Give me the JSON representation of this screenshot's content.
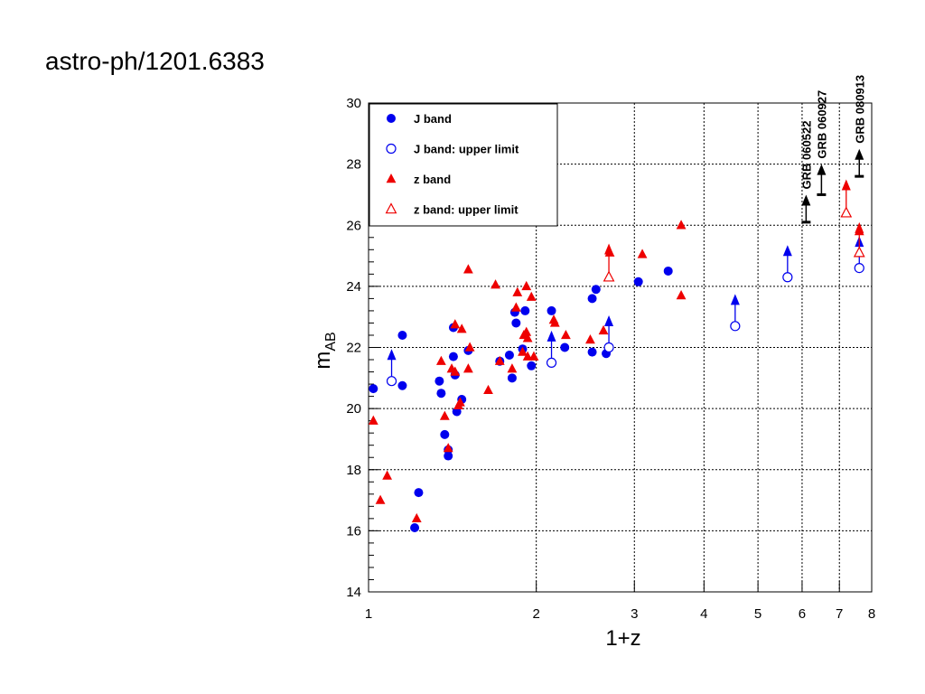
{
  "header": {
    "source_label": "astro-ph/1201.6383"
  },
  "chart_data": {
    "type": "scatter",
    "title": "",
    "xlabel": "1+z",
    "ylabel": "m",
    "ylabel_sub": "AB",
    "xscale": "log",
    "xlim": [
      1,
      8
    ],
    "ylim": [
      14,
      30
    ],
    "x_ticks": [
      1,
      2,
      3,
      4,
      5,
      6,
      7,
      8
    ],
    "y_ticks": [
      14,
      16,
      18,
      20,
      22,
      24,
      26,
      28,
      30
    ],
    "grid": true,
    "legend_position": "top-left",
    "colors": {
      "J": "#0000ee",
      "z": "#ee0000",
      "grb": "#000000"
    },
    "legend": [
      {
        "label": "J band",
        "marker": "filled-circle",
        "color": "#0000ee"
      },
      {
        "label": "J band: upper limit",
        "marker": "open-circle",
        "color": "#0000ee"
      },
      {
        "label": "z band",
        "marker": "filled-triangle",
        "color": "#ee0000"
      },
      {
        "label": "z band: upper limit",
        "marker": "open-triangle",
        "color": "#ee0000"
      }
    ],
    "series": [
      {
        "name": "J band",
        "marker": "filled-circle",
        "points": [
          [
            1.02,
            20.65
          ],
          [
            1.15,
            22.4
          ],
          [
            1.15,
            20.75
          ],
          [
            1.21,
            16.1
          ],
          [
            1.23,
            17.25
          ],
          [
            1.34,
            20.9
          ],
          [
            1.35,
            20.5
          ],
          [
            1.37,
            19.15
          ],
          [
            1.39,
            18.65
          ],
          [
            1.39,
            18.45
          ],
          [
            1.42,
            21.7
          ],
          [
            1.42,
            22.65
          ],
          [
            1.43,
            21.1
          ],
          [
            1.44,
            19.9
          ],
          [
            1.47,
            20.3
          ],
          [
            1.51,
            21.9
          ],
          [
            1.72,
            21.55
          ],
          [
            1.79,
            21.75
          ],
          [
            1.81,
            21.0
          ],
          [
            1.83,
            23.15
          ],
          [
            1.84,
            22.8
          ],
          [
            1.89,
            21.95
          ],
          [
            1.91,
            23.2
          ],
          [
            1.96,
            21.4
          ],
          [
            2.13,
            23.2
          ],
          [
            2.25,
            22.0
          ],
          [
            2.52,
            21.85
          ],
          [
            2.52,
            23.6
          ],
          [
            2.56,
            23.9
          ],
          [
            2.67,
            21.8
          ],
          [
            3.05,
            24.15
          ],
          [
            3.45,
            24.5
          ]
        ]
      },
      {
        "name": "J band: upper limit",
        "marker": "open-circle",
        "points": [
          [
            1.1,
            20.9
          ],
          [
            2.13,
            21.5
          ],
          [
            2.7,
            22.0
          ],
          [
            4.55,
            22.7
          ],
          [
            5.65,
            24.3
          ],
          [
            7.6,
            24.6
          ]
        ]
      },
      {
        "name": "z band",
        "marker": "filled-triangle",
        "points": [
          [
            1.02,
            19.6
          ],
          [
            1.05,
            17.0
          ],
          [
            1.08,
            17.8
          ],
          [
            1.22,
            16.4
          ],
          [
            1.35,
            21.55
          ],
          [
            1.37,
            19.75
          ],
          [
            1.39,
            18.7
          ],
          [
            1.41,
            21.3
          ],
          [
            1.43,
            21.2
          ],
          [
            1.43,
            22.75
          ],
          [
            1.45,
            20.1
          ],
          [
            1.46,
            20.2
          ],
          [
            1.47,
            22.6
          ],
          [
            1.51,
            24.55
          ],
          [
            1.51,
            21.3
          ],
          [
            1.52,
            22.0
          ],
          [
            1.64,
            20.6
          ],
          [
            1.69,
            24.05
          ],
          [
            1.72,
            21.55
          ],
          [
            1.81,
            21.3
          ],
          [
            1.84,
            23.3
          ],
          [
            1.85,
            23.8
          ],
          [
            1.89,
            21.85
          ],
          [
            1.9,
            22.4
          ],
          [
            1.92,
            22.5
          ],
          [
            1.92,
            24.0
          ],
          [
            1.93,
            22.3
          ],
          [
            1.93,
            21.7
          ],
          [
            1.96,
            23.65
          ],
          [
            1.98,
            21.7
          ],
          [
            2.15,
            22.9
          ],
          [
            2.16,
            22.8
          ],
          [
            2.26,
            22.4
          ],
          [
            2.5,
            22.25
          ],
          [
            2.64,
            22.55
          ],
          [
            2.71,
            25.1
          ],
          [
            3.1,
            25.05
          ],
          [
            3.64,
            26.0
          ],
          [
            3.64,
            23.7
          ],
          [
            7.6,
            25.8
          ]
        ]
      },
      {
        "name": "z band: upper limit",
        "marker": "open-triangle",
        "points": [
          [
            2.7,
            24.3
          ],
          [
            7.2,
            26.4
          ],
          [
            7.6,
            25.1
          ]
        ]
      }
    ],
    "J_limit_arrows": [
      [
        1.1,
        20.9,
        21.95
      ],
      [
        2.13,
        21.5,
        22.55
      ],
      [
        2.7,
        22.0,
        23.05
      ],
      [
        4.55,
        22.7,
        23.75
      ],
      [
        5.65,
        24.3,
        25.35
      ],
      [
        7.6,
        24.6,
        25.65
      ]
    ],
    "z_limit_arrows": [
      [
        2.7,
        24.3,
        25.4
      ],
      [
        7.2,
        26.4,
        27.5
      ],
      [
        7.6,
        25.1,
        26.1
      ]
    ],
    "grb_limits": [
      {
        "label": "GRB 060522",
        "x": 6.1,
        "y": 26.1,
        "arrow_top": 27.0
      },
      {
        "label": "GRB 060927",
        "x": 6.5,
        "y": 27.0,
        "arrow_top": 28.0
      },
      {
        "label": "GRB 080913",
        "x": 7.6,
        "y": 27.6,
        "arrow_top": 28.5
      }
    ]
  }
}
